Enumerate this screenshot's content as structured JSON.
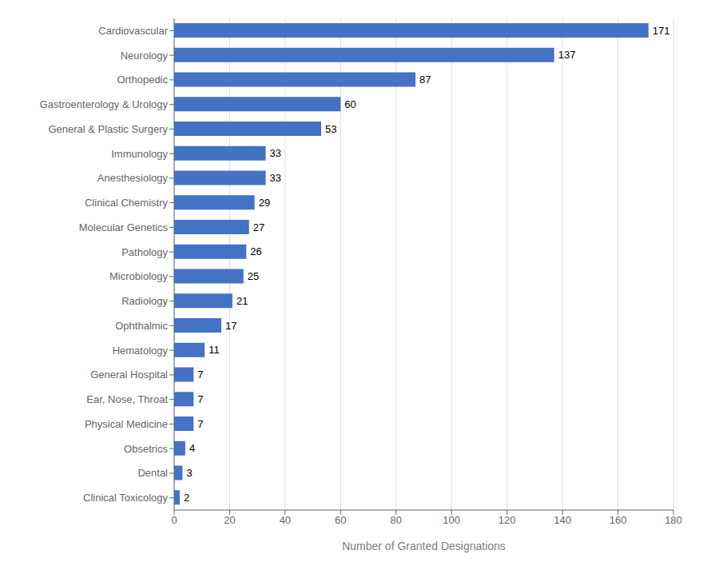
{
  "chart_data": {
    "type": "bar",
    "orientation": "horizontal",
    "categories": [
      "Cardiovascular",
      "Neurology",
      "Orthopedic",
      "Gastroenterology & Urology",
      "General & Plastic Surgery",
      "Immunology",
      "Anesthesiology",
      "Clinical Chemistry",
      "Molecular Genetics",
      "Pathology",
      "Microbiology",
      "Radiology",
      "Ophthalmic",
      "Hematology",
      "General Hospital",
      "Ear, Nose, Throat",
      "Physical Medicine",
      "Obsetrics",
      "Dental",
      "Clinical Toxicology"
    ],
    "values": [
      171,
      137,
      87,
      60,
      53,
      33,
      33,
      29,
      27,
      26,
      25,
      21,
      17,
      11,
      7,
      7,
      7,
      4,
      3,
      2
    ],
    "color": "#4472C4",
    "xlabel": "Number of Granted Designations",
    "xlim": [
      0,
      180
    ],
    "xticks": [
      0,
      20,
      40,
      60,
      80,
      100,
      120,
      140,
      160,
      180
    ],
    "grid": true,
    "data_labels": true
  }
}
